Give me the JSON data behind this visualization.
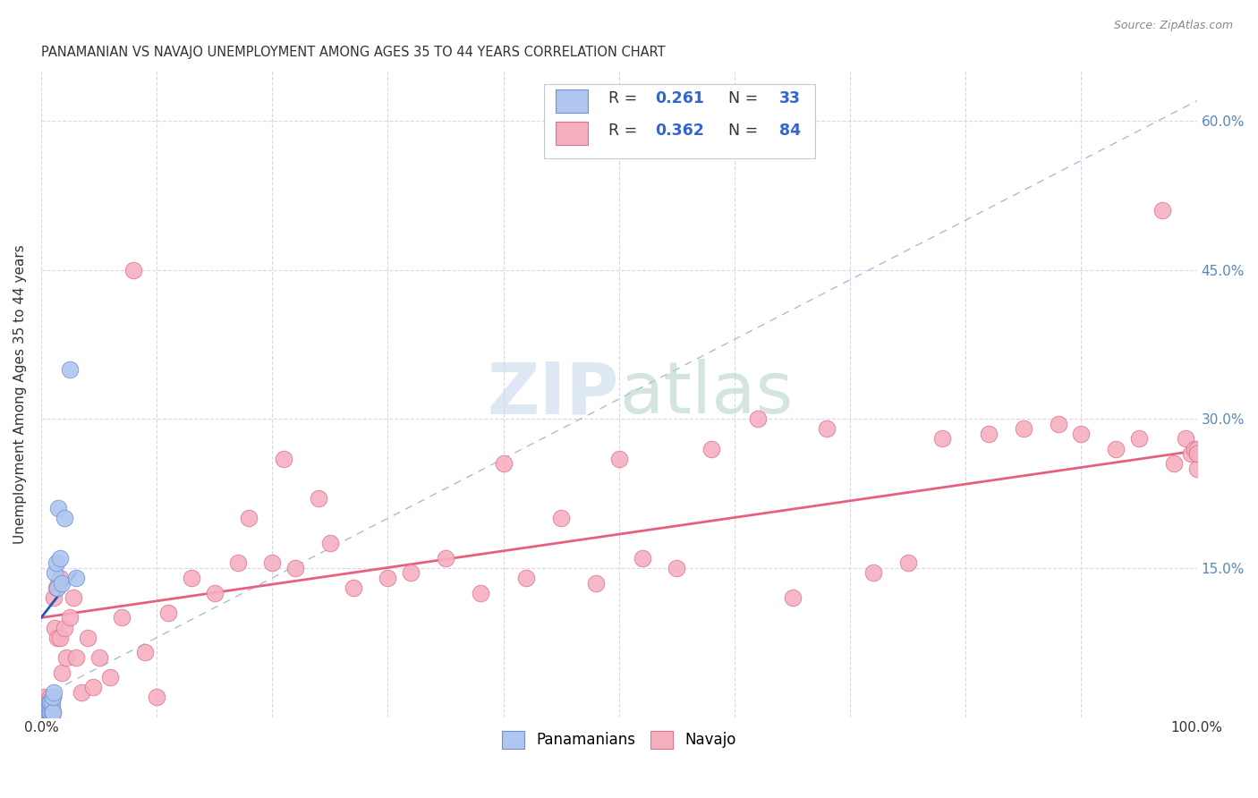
{
  "title": "PANAMANIAN VS NAVAJO UNEMPLOYMENT AMONG AGES 35 TO 44 YEARS CORRELATION CHART",
  "source": "Source: ZipAtlas.com",
  "ylabel": "Unemployment Among Ages 35 to 44 years",
  "xlim": [
    0,
    1.0
  ],
  "ylim": [
    0,
    0.65
  ],
  "legend_pan_r": "0.261",
  "legend_pan_n": "33",
  "legend_nav_r": "0.362",
  "legend_nav_n": "84",
  "pan_color": "#aec6f0",
  "nav_color": "#f5b0c0",
  "pan_edge_color": "#7090d0",
  "nav_edge_color": "#e07090",
  "pan_line_color": "#2255bb",
  "nav_line_color": "#e86080",
  "pan_dash_color": "#aabcdc",
  "background_color": "#ffffff",
  "grid_color": "#d8d8e8",
  "text_color": "#333333",
  "blue_label_color": "#3366cc",
  "right_tick_color": "#5588bb",
  "pan_x": [
    0.001,
    0.002,
    0.002,
    0.003,
    0.003,
    0.003,
    0.004,
    0.004,
    0.005,
    0.005,
    0.005,
    0.006,
    0.006,
    0.006,
    0.007,
    0.007,
    0.007,
    0.008,
    0.008,
    0.009,
    0.009,
    0.01,
    0.01,
    0.011,
    0.012,
    0.013,
    0.014,
    0.015,
    0.016,
    0.018,
    0.02,
    0.025,
    0.03
  ],
  "pan_y": [
    0.0,
    0.0,
    0.005,
    0.0,
    0.005,
    0.01,
    0.0,
    0.005,
    0.0,
    0.005,
    0.01,
    0.0,
    0.005,
    0.01,
    0.005,
    0.01,
    0.015,
    0.005,
    0.015,
    0.005,
    0.015,
    0.005,
    0.02,
    0.025,
    0.145,
    0.155,
    0.13,
    0.21,
    0.16,
    0.135,
    0.2,
    0.35,
    0.14
  ],
  "nav_x": [
    0.001,
    0.002,
    0.003,
    0.003,
    0.004,
    0.005,
    0.005,
    0.006,
    0.006,
    0.007,
    0.007,
    0.007,
    0.008,
    0.008,
    0.009,
    0.009,
    0.01,
    0.01,
    0.011,
    0.012,
    0.013,
    0.014,
    0.015,
    0.016,
    0.016,
    0.018,
    0.02,
    0.022,
    0.025,
    0.028,
    0.03,
    0.035,
    0.04,
    0.045,
    0.05,
    0.06,
    0.07,
    0.08,
    0.09,
    0.1,
    0.11,
    0.13,
    0.15,
    0.17,
    0.18,
    0.2,
    0.21,
    0.22,
    0.24,
    0.25,
    0.27,
    0.3,
    0.32,
    0.35,
    0.38,
    0.4,
    0.42,
    0.45,
    0.48,
    0.5,
    0.52,
    0.55,
    0.58,
    0.62,
    0.65,
    0.68,
    0.72,
    0.75,
    0.78,
    0.82,
    0.85,
    0.88,
    0.9,
    0.93,
    0.95,
    0.97,
    0.98,
    0.99,
    0.995,
    0.998,
    1.0,
    1.0,
    1.0,
    1.0
  ],
  "nav_y": [
    0.005,
    0.01,
    0.0,
    0.02,
    0.005,
    0.0,
    0.015,
    0.0,
    0.01,
    0.0,
    0.005,
    0.015,
    0.005,
    0.02,
    0.0,
    0.01,
    0.005,
    0.02,
    0.12,
    0.09,
    0.13,
    0.08,
    0.135,
    0.08,
    0.14,
    0.045,
    0.09,
    0.06,
    0.1,
    0.12,
    0.06,
    0.025,
    0.08,
    0.03,
    0.06,
    0.04,
    0.1,
    0.45,
    0.065,
    0.02,
    0.105,
    0.14,
    0.125,
    0.155,
    0.2,
    0.155,
    0.26,
    0.15,
    0.22,
    0.175,
    0.13,
    0.14,
    0.145,
    0.16,
    0.125,
    0.255,
    0.14,
    0.2,
    0.135,
    0.26,
    0.16,
    0.15,
    0.27,
    0.3,
    0.12,
    0.29,
    0.145,
    0.155,
    0.28,
    0.285,
    0.29,
    0.295,
    0.285,
    0.27,
    0.28,
    0.51,
    0.255,
    0.28,
    0.265,
    0.27,
    0.265,
    0.27,
    0.25,
    0.265
  ]
}
